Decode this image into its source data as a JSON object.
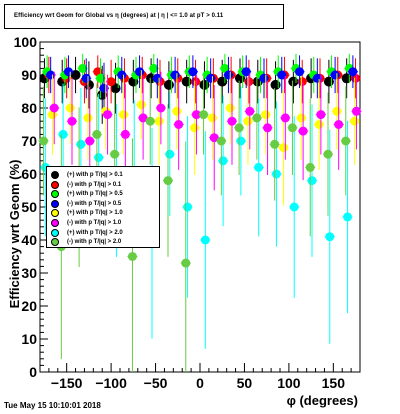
{
  "title": "Efficiency wrt Geom for Global vs η (degrees) at | η | <= 1.0 at pT > 0.11",
  "timestamp": "Tue May 15 10:10:01 2018",
  "chart_data": {
    "type": "scatter",
    "xlabel": "φ (degrees)",
    "ylabel": "Efficiency wrt Geom (%)",
    "xlim": [
      -180,
      180
    ],
    "ylim": [
      0,
      100
    ],
    "x_ticks": [
      -150,
      -100,
      -50,
      0,
      50,
      100,
      150
    ],
    "x_tick_labels": [
      "−150",
      "−100",
      "−50",
      "0",
      "50",
      "100",
      "150"
    ],
    "y_ticks": [
      0,
      10,
      20,
      30,
      40,
      50,
      60,
      70,
      80,
      90,
      100
    ],
    "y_tick_labels": [
      "0",
      "10",
      "20",
      "30",
      "40",
      "50",
      "60",
      "70",
      "80",
      "90",
      "100"
    ],
    "grid": false,
    "legend_position": "center-left",
    "series": [
      {
        "name": "(+) with p T/|q| > 0.1",
        "color": "#000000",
        "points": [
          [
            -175,
            89
          ],
          [
            -155,
            88
          ],
          [
            -140,
            90
          ],
          [
            -125,
            87
          ],
          [
            -110,
            84
          ],
          [
            -95,
            86
          ],
          [
            -75,
            88
          ],
          [
            -55,
            89
          ],
          [
            -35,
            87
          ],
          [
            -15,
            88
          ],
          [
            5,
            87
          ],
          [
            25,
            88
          ],
          [
            45,
            89
          ],
          [
            65,
            88
          ],
          [
            85,
            87
          ],
          [
            105,
            88
          ],
          [
            125,
            89
          ],
          [
            145,
            88
          ],
          [
            165,
            89
          ]
        ]
      },
      {
        "name": "(-) with p T/|q| > 0.1",
        "color": "#ff0000",
        "points": [
          [
            -170,
            90
          ],
          [
            -150,
            89
          ],
          [
            -130,
            88
          ],
          [
            -115,
            91
          ],
          [
            -100,
            88
          ],
          [
            -85,
            89
          ],
          [
            -65,
            90
          ],
          [
            -45,
            88
          ],
          [
            -25,
            89
          ],
          [
            -5,
            88
          ],
          [
            15,
            89
          ],
          [
            35,
            90
          ],
          [
            55,
            88
          ],
          [
            75,
            89
          ],
          [
            95,
            90
          ],
          [
            115,
            88
          ],
          [
            135,
            89
          ],
          [
            155,
            90
          ],
          [
            175,
            89
          ]
        ]
      },
      {
        "name": "(+) with p T/|q| > 0.5",
        "color": "#00ff00",
        "points": [
          [
            -172,
            91
          ],
          [
            -152,
            90
          ],
          [
            -132,
            92
          ],
          [
            -112,
            89
          ],
          [
            -92,
            91
          ],
          [
            -72,
            90
          ],
          [
            -52,
            92
          ],
          [
            -32,
            90
          ],
          [
            -12,
            91
          ],
          [
            8,
            90
          ],
          [
            28,
            92
          ],
          [
            48,
            91
          ],
          [
            68,
            90
          ],
          [
            88,
            91
          ],
          [
            108,
            92
          ],
          [
            128,
            90
          ],
          [
            148,
            91
          ],
          [
            168,
            92
          ]
        ]
      },
      {
        "name": "(-) with p T/|q| > 0.5",
        "color": "#0000ff",
        "points": [
          [
            -168,
            90
          ],
          [
            -148,
            91
          ],
          [
            -128,
            89
          ],
          [
            -108,
            86
          ],
          [
            -88,
            90
          ],
          [
            -68,
            91
          ],
          [
            -48,
            89
          ],
          [
            -28,
            90
          ],
          [
            -8,
            91
          ],
          [
            12,
            89
          ],
          [
            32,
            90
          ],
          [
            52,
            91
          ],
          [
            72,
            89
          ],
          [
            92,
            90
          ],
          [
            112,
            91
          ],
          [
            132,
            89
          ],
          [
            152,
            90
          ],
          [
            172,
            91
          ]
        ]
      },
      {
        "name": "(+) with p T/|q| > 1.0",
        "color": "#ffff00",
        "points": [
          [
            -166,
            78
          ],
          [
            -146,
            80
          ],
          [
            -126,
            77
          ],
          [
            -106,
            79
          ],
          [
            -86,
            78
          ],
          [
            -66,
            81
          ],
          [
            -46,
            76
          ],
          [
            -26,
            79
          ],
          [
            -6,
            74
          ],
          [
            14,
            77
          ],
          [
            34,
            80
          ],
          [
            54,
            76
          ],
          [
            74,
            78
          ],
          [
            94,
            68
          ],
          [
            114,
            77
          ],
          [
            134,
            75
          ],
          [
            154,
            79
          ],
          [
            174,
            76
          ]
        ]
      },
      {
        "name": "(-) with p T/|q| > 1.0",
        "color": "#ff00ff",
        "points": [
          [
            -164,
            80
          ],
          [
            -144,
            76
          ],
          [
            -124,
            70
          ],
          [
            -104,
            78
          ],
          [
            -84,
            72
          ],
          [
            -64,
            77
          ],
          [
            -44,
            80
          ],
          [
            -24,
            75
          ],
          [
            -4,
            78
          ],
          [
            16,
            71
          ],
          [
            36,
            76
          ],
          [
            56,
            79
          ],
          [
            76,
            74
          ],
          [
            96,
            77
          ],
          [
            116,
            73
          ],
          [
            136,
            78
          ],
          [
            156,
            75
          ],
          [
            176,
            79
          ]
        ]
      },
      {
        "name": "(+) with p T/|q| > 2.0",
        "color": "#00ffff",
        "points": [
          [
            -174,
            62
          ],
          [
            -154,
            72
          ],
          [
            -134,
            69
          ],
          [
            -114,
            65
          ],
          [
            -94,
            58
          ],
          [
            -74,
            61
          ],
          [
            -54,
            42
          ],
          [
            -34,
            66
          ],
          [
            -14,
            50
          ],
          [
            6,
            40
          ],
          [
            26,
            64
          ],
          [
            46,
            70
          ],
          [
            66,
            62
          ],
          [
            86,
            60
          ],
          [
            106,
            50
          ],
          [
            126,
            58
          ],
          [
            146,
            41
          ],
          [
            166,
            47
          ]
        ]
      },
      {
        "name": "(-) with p T/|q| > 2.0",
        "color": "#66cc44",
        "points": [
          [
            -176,
            70
          ],
          [
            -156,
            38
          ],
          [
            -136,
            56
          ],
          [
            -116,
            72
          ],
          [
            -96,
            66
          ],
          [
            -76,
            35
          ],
          [
            -56,
            76
          ],
          [
            -36,
            58
          ],
          [
            -16,
            33
          ],
          [
            4,
            78
          ],
          [
            24,
            70
          ],
          [
            44,
            74
          ],
          [
            64,
            77
          ],
          [
            84,
            69
          ],
          [
            104,
            74
          ],
          [
            124,
            62
          ],
          [
            144,
            66
          ],
          [
            164,
            70
          ]
        ]
      }
    ]
  }
}
